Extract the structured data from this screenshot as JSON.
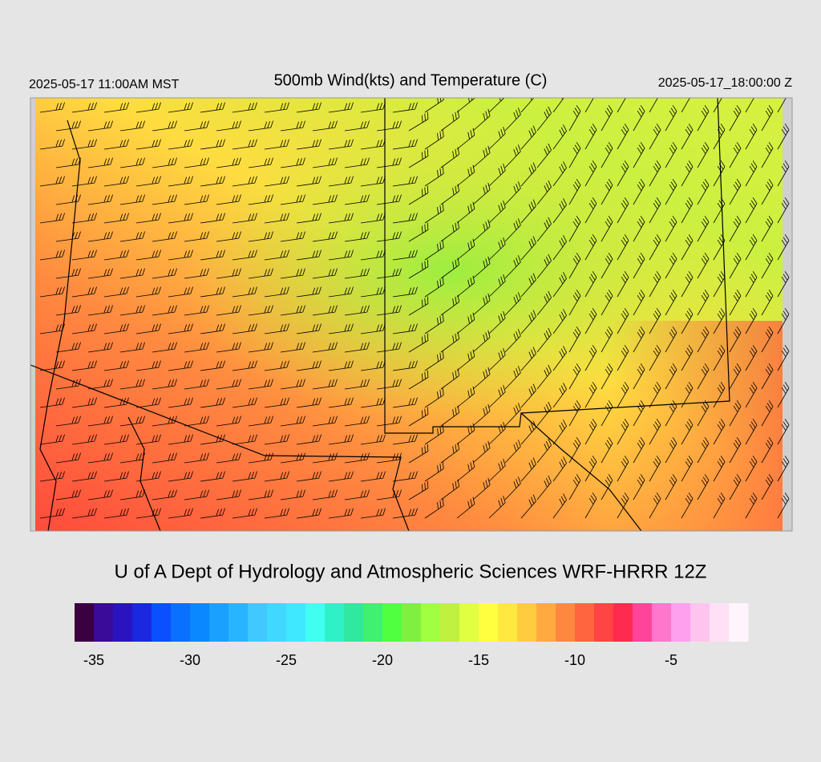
{
  "header": {
    "local_time": "2025-05-17 11:00AM MST",
    "title": "500mb Wind(kts) and Temperature (C)",
    "valid_time": "2025-05-17_18:00:00 Z"
  },
  "credit": "U of A Dept of Hydrology and Atmospheric Sciences WRF-HRRR 12Z",
  "colorbar": {
    "range": [
      -36,
      -1
    ],
    "ticks": [
      -35,
      -30,
      -25,
      -20,
      -15,
      -10,
      -5
    ],
    "colors": [
      "#3a0040",
      "#3a0a99",
      "#2a14c0",
      "#1a28e0",
      "#0a50ff",
      "#0a70ff",
      "#0a88ff",
      "#1aa0ff",
      "#28b4ff",
      "#40c8ff",
      "#40d8ff",
      "#40e8ff",
      "#40fff0",
      "#30f0c8",
      "#30e8a0",
      "#40f070",
      "#50ff40",
      "#80f040",
      "#a0ff40",
      "#c0f040",
      "#e0ff40",
      "#ffff40",
      "#ffe840",
      "#ffcc40",
      "#ffaa40",
      "#ff8840",
      "#ff6640",
      "#ff4444",
      "#ff2a50",
      "#ff4499",
      "#ff77cc",
      "#ffa0ee",
      "#ffc4ee",
      "#ffe0f4",
      "#fff4fc"
    ]
  }
}
